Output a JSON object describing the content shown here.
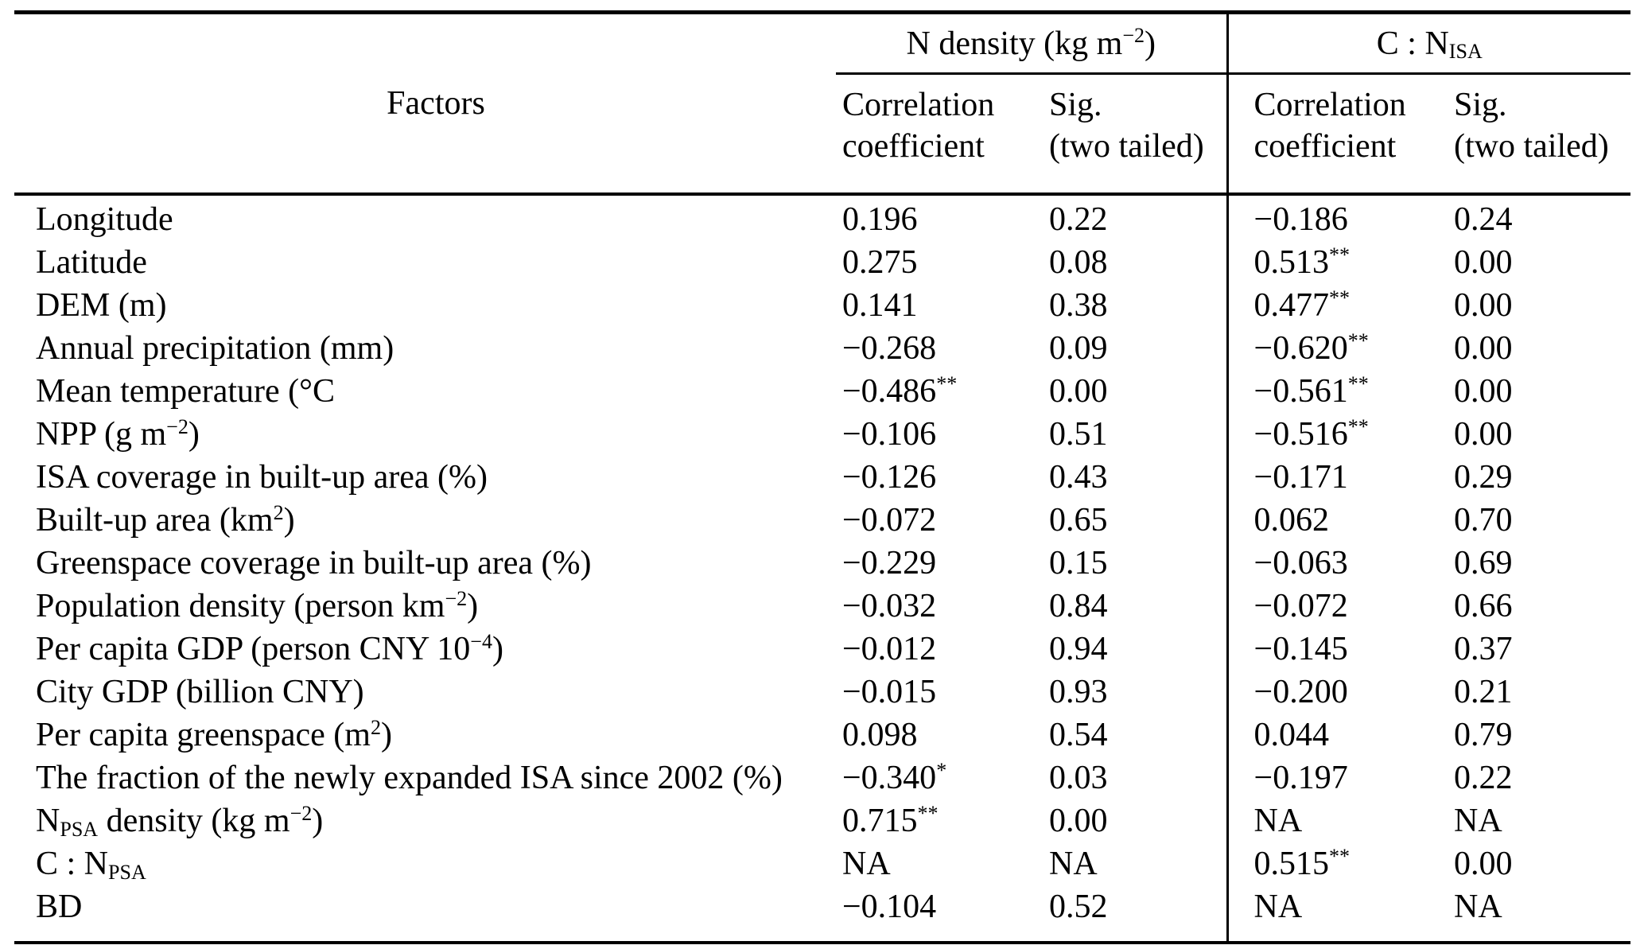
{
  "colors": {
    "text": "#000000",
    "background": "#ffffff",
    "rule": "#000000"
  },
  "table": {
    "factors_label": "Factors",
    "column_groups": [
      {
        "label": "N density (kg m^{−2})",
        "subcolumns": [
          "Correlation\ncoefficient",
          "Sig.\n(two tailed)"
        ]
      },
      {
        "label": "C : N_{ISA}",
        "subcolumns": [
          "Correlation\ncoefficient",
          "Sig.\n(two tailed)"
        ]
      }
    ],
    "rows": [
      {
        "factor": "Longitude",
        "nd_corr": "0.196",
        "nd_sig": "0.22",
        "cn_corr": "−0.186",
        "cn_sig": "0.24"
      },
      {
        "factor": "Latitude",
        "nd_corr": "0.275",
        "nd_sig": "0.08",
        "cn_corr": "0.513^{**}",
        "cn_sig": "0.00"
      },
      {
        "factor": "DEM (m)",
        "nd_corr": "0.141",
        "nd_sig": "0.38",
        "cn_corr": "0.477^{**}",
        "cn_sig": "0.00"
      },
      {
        "factor": "Annual precipitation (mm)",
        "nd_corr": "−0.268",
        "nd_sig": "0.09",
        "cn_corr": "−0.620^{**}",
        "cn_sig": "0.00"
      },
      {
        "factor": "Mean temperature (°C",
        "nd_corr": "−0.486^{**}",
        "nd_sig": "0.00",
        "cn_corr": "−0.561^{**}",
        "cn_sig": "0.00"
      },
      {
        "factor": "NPP (g m^{−2})",
        "nd_corr": "−0.106",
        "nd_sig": "0.51",
        "cn_corr": "−0.516^{**}",
        "cn_sig": "0.00"
      },
      {
        "factor": "ISA coverage in built-up area (%)",
        "nd_corr": "−0.126",
        "nd_sig": "0.43",
        "cn_corr": "−0.171",
        "cn_sig": "0.29"
      },
      {
        "factor": "Built-up area (km^{2})",
        "nd_corr": "−0.072",
        "nd_sig": "0.65",
        "cn_corr": "0.062",
        "cn_sig": "0.70"
      },
      {
        "factor": "Greenspace coverage in built-up area (%)",
        "nd_corr": "−0.229",
        "nd_sig": "0.15",
        "cn_corr": "−0.063",
        "cn_sig": "0.69"
      },
      {
        "factor": "Population density (person km^{−2})",
        "nd_corr": "−0.032",
        "nd_sig": "0.84",
        "cn_corr": "−0.072",
        "cn_sig": "0.66"
      },
      {
        "factor": "Per capita GDP (person CNY 10^{−4})",
        "nd_corr": "−0.012",
        "nd_sig": "0.94",
        "cn_corr": "−0.145",
        "cn_sig": "0.37"
      },
      {
        "factor": "City GDP (billion CNY)",
        "nd_corr": "−0.015",
        "nd_sig": "0.93",
        "cn_corr": "−0.200",
        "cn_sig": "0.21"
      },
      {
        "factor": "Per capita greenspace (m^{2})",
        "nd_corr": "0.098",
        "nd_sig": "0.54",
        "cn_corr": "0.044",
        "cn_sig": "0.79"
      },
      {
        "factor": "The fraction of the newly expanded ISA since 2002 (%)",
        "nd_corr": "−0.340^{*}",
        "nd_sig": "0.03",
        "cn_corr": "−0.197",
        "cn_sig": "0.22"
      },
      {
        "factor": "N_{PSA} density (kg m^{−2})",
        "nd_corr": "0.715^{**}",
        "nd_sig": "0.00",
        "cn_corr": "NA",
        "cn_sig": "NA"
      },
      {
        "factor": "C : N_{PSA}",
        "nd_corr": "NA",
        "nd_sig": "NA",
        "cn_corr": "0.515^{**}",
        "cn_sig": "0.00"
      },
      {
        "factor": "BD",
        "nd_corr": "−0.104",
        "nd_sig": "0.52",
        "cn_corr": "NA",
        "cn_sig": "NA"
      }
    ]
  }
}
